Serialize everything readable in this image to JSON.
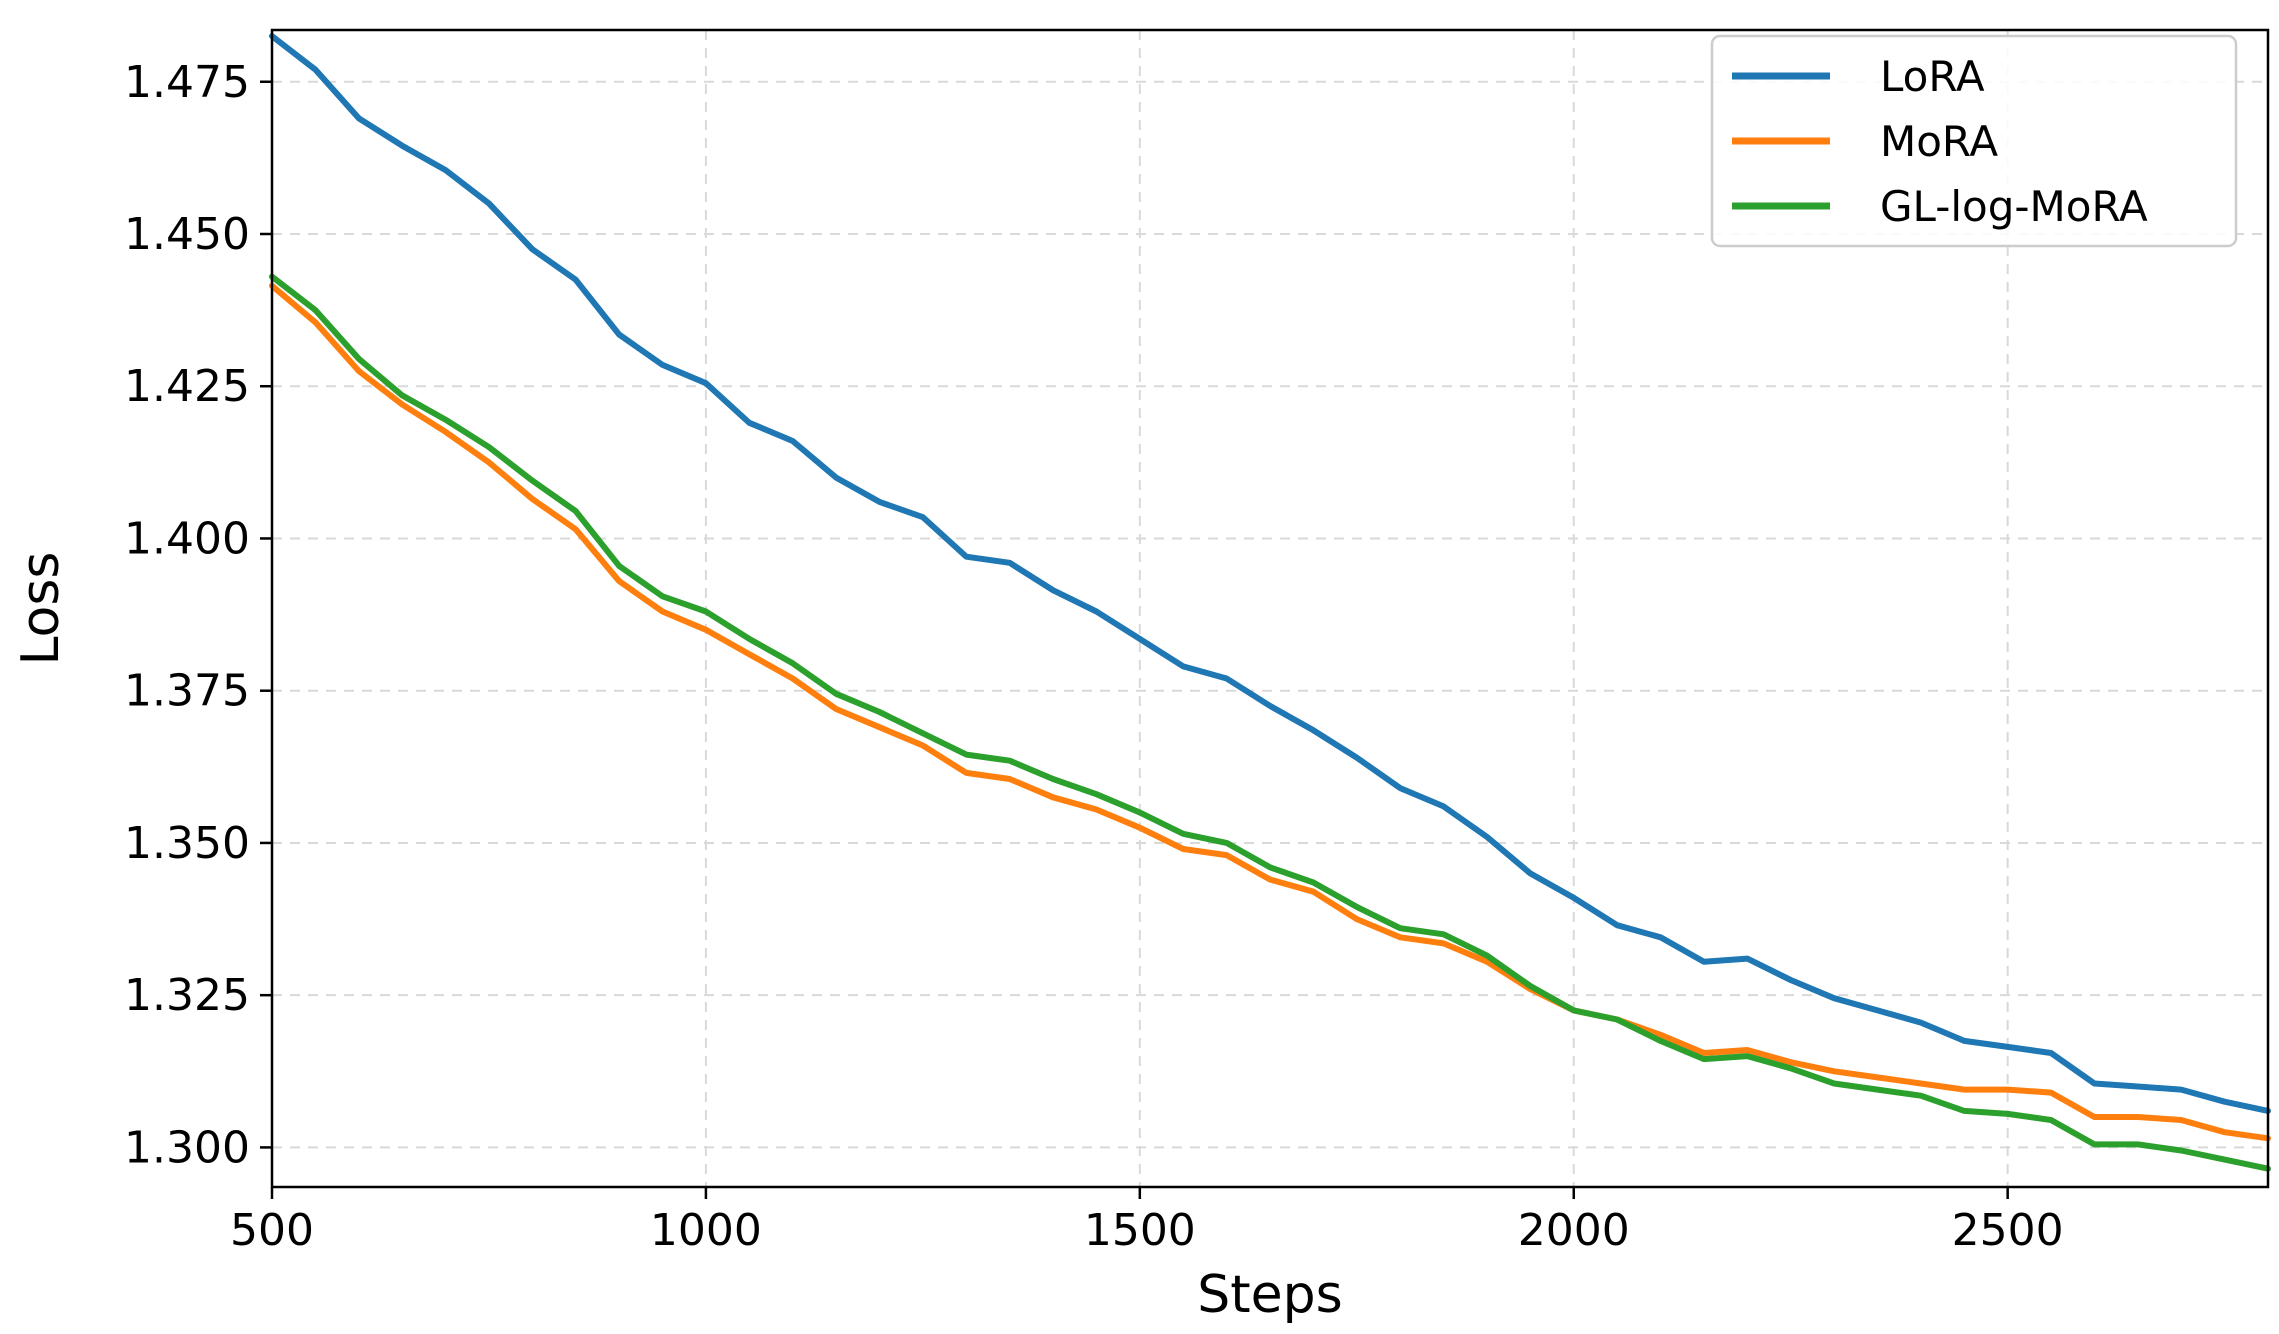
{
  "chart_data": {
    "type": "line",
    "title": "",
    "xlabel": "Steps",
    "ylabel": "Loss",
    "xlim": [
      500,
      2800
    ],
    "ylim": [
      1.2935,
      1.4835
    ],
    "x_ticks": [
      500,
      1000,
      1500,
      2000,
      2500
    ],
    "x_tick_labels": [
      "500",
      "1000",
      "1500",
      "2000",
      "2500"
    ],
    "y_ticks": [
      1.3,
      1.325,
      1.35,
      1.375,
      1.4,
      1.425,
      1.45,
      1.475
    ],
    "y_tick_labels": [
      "1.300",
      "1.325",
      "1.350",
      "1.375",
      "1.400",
      "1.425",
      "1.450",
      "1.475"
    ],
    "grid": true,
    "legend_position": "top-right",
    "x": [
      500,
      550,
      600,
      650,
      700,
      750,
      800,
      850,
      900,
      950,
      1000,
      1050,
      1100,
      1150,
      1200,
      1250,
      1300,
      1350,
      1400,
      1450,
      1500,
      1550,
      1600,
      1650,
      1700,
      1750,
      1800,
      1850,
      1900,
      1950,
      2000,
      2050,
      2100,
      2150,
      2200,
      2250,
      2300,
      2350,
      2400,
      2450,
      2500,
      2550,
      2600,
      2650,
      2700,
      2750,
      2800
    ],
    "series": [
      {
        "name": "LoRA",
        "color": "#1f77b4",
        "values": [
          1.4825,
          1.477,
          1.469,
          1.4645,
          1.4605,
          1.455,
          1.4475,
          1.4425,
          1.4335,
          1.4285,
          1.4255,
          1.419,
          1.416,
          1.41,
          1.406,
          1.4035,
          1.397,
          1.396,
          1.3915,
          1.388,
          1.3835,
          1.379,
          1.377,
          1.3725,
          1.3685,
          1.364,
          1.359,
          1.356,
          1.351,
          1.345,
          1.341,
          1.3365,
          1.3345,
          1.3305,
          1.331,
          1.3275,
          1.3245,
          1.3225,
          1.3205,
          1.3175,
          1.3165,
          1.3155,
          1.3105,
          1.31,
          1.3095,
          1.3075,
          1.306
        ]
      },
      {
        "name": "MoRA",
        "color": "#ff7f0e",
        "values": [
          1.4415,
          1.4355,
          1.4275,
          1.422,
          1.4175,
          1.4125,
          1.4065,
          1.4015,
          1.393,
          1.388,
          1.385,
          1.381,
          1.377,
          1.372,
          1.369,
          1.366,
          1.3615,
          1.3605,
          1.3575,
          1.3555,
          1.3525,
          1.349,
          1.348,
          1.344,
          1.342,
          1.3375,
          1.3345,
          1.3335,
          1.3305,
          1.326,
          1.3225,
          1.321,
          1.3185,
          1.3155,
          1.316,
          1.314,
          1.3125,
          1.3115,
          1.3105,
          1.3095,
          1.3095,
          1.309,
          1.305,
          1.305,
          1.3045,
          1.3025,
          1.3015
        ]
      },
      {
        "name": "GL-log-MoRA",
        "color": "#2ca02c",
        "values": [
          1.443,
          1.4375,
          1.4295,
          1.4235,
          1.4195,
          1.415,
          1.4095,
          1.4045,
          1.3955,
          1.3905,
          1.388,
          1.3835,
          1.3795,
          1.3745,
          1.3715,
          1.368,
          1.3645,
          1.3635,
          1.3605,
          1.358,
          1.355,
          1.3515,
          1.35,
          1.346,
          1.3435,
          1.3395,
          1.336,
          1.335,
          1.3315,
          1.3265,
          1.3225,
          1.321,
          1.3175,
          1.3145,
          1.315,
          1.313,
          1.3105,
          1.3095,
          1.3085,
          1.306,
          1.3055,
          1.3045,
          1.3005,
          1.3005,
          1.2995,
          1.298,
          1.2965
        ]
      }
    ]
  }
}
